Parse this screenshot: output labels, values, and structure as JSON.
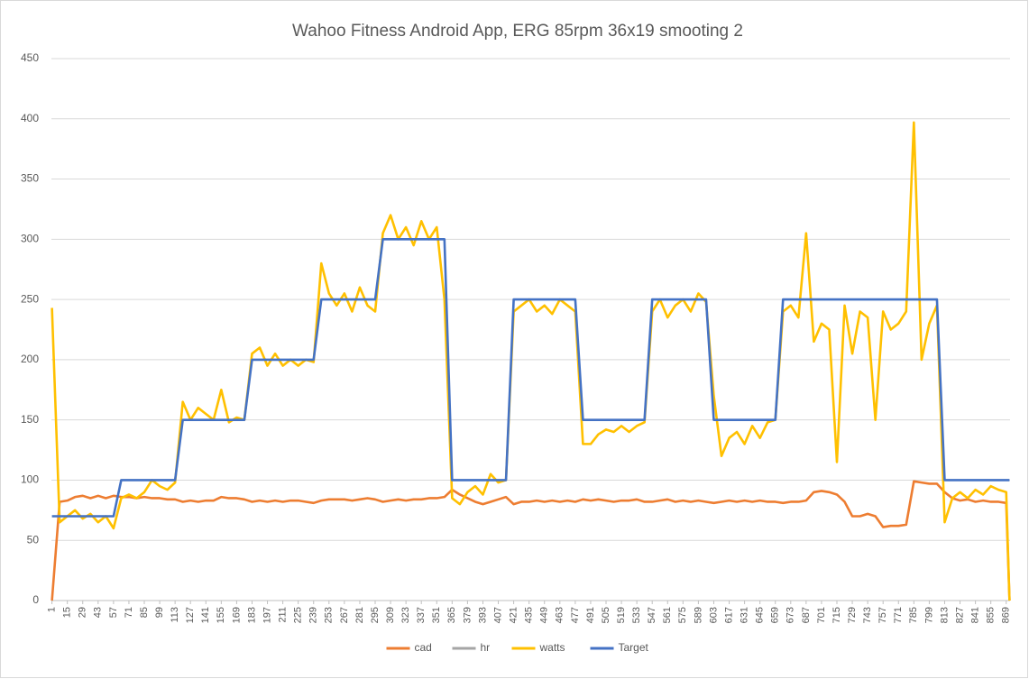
{
  "chart_data": {
    "type": "line",
    "title": "Wahoo Fitness Android App, ERG 85rpm 36x19  smooting 2",
    "x": [
      1,
      8,
      15,
      22,
      29,
      36,
      43,
      50,
      57,
      64,
      71,
      78,
      85,
      92,
      99,
      106,
      113,
      120,
      127,
      134,
      141,
      148,
      155,
      162,
      169,
      176,
      183,
      190,
      197,
      204,
      211,
      218,
      225,
      232,
      239,
      246,
      253,
      260,
      267,
      274,
      281,
      288,
      295,
      302,
      309,
      316,
      323,
      330,
      337,
      344,
      351,
      358,
      365,
      372,
      379,
      386,
      393,
      400,
      407,
      414,
      421,
      428,
      435,
      442,
      449,
      456,
      463,
      470,
      477,
      484,
      491,
      498,
      505,
      512,
      519,
      526,
      533,
      540,
      547,
      554,
      561,
      568,
      575,
      582,
      589,
      596,
      603,
      610,
      617,
      624,
      631,
      638,
      645,
      652,
      659,
      666,
      673,
      680,
      687,
      694,
      701,
      708,
      715,
      722,
      729,
      736,
      743,
      750,
      757,
      764,
      771,
      778,
      785,
      792,
      799,
      806,
      813,
      820,
      827,
      834,
      841,
      848,
      855,
      862,
      869,
      872
    ],
    "xlim": [
      0.5,
      872.5
    ],
    "xticks": [
      1,
      15,
      29,
      43,
      57,
      71,
      85,
      99,
      113,
      127,
      141,
      155,
      169,
      183,
      197,
      211,
      225,
      239,
      253,
      267,
      281,
      295,
      309,
      323,
      337,
      351,
      365,
      379,
      393,
      407,
      421,
      435,
      449,
      463,
      477,
      491,
      505,
      519,
      533,
      547,
      561,
      575,
      589,
      603,
      617,
      631,
      645,
      659,
      673,
      687,
      701,
      715,
      729,
      743,
      757,
      771,
      785,
      799,
      813,
      827,
      841,
      855,
      869
    ],
    "ylim": [
      0,
      450
    ],
    "yticks": [
      0,
      50,
      100,
      150,
      200,
      250,
      300,
      350,
      400,
      450
    ],
    "grid": true,
    "legend": "bottom",
    "series": [
      {
        "name": "cad",
        "color": "#ed7d31",
        "values": [
          0,
          82,
          83,
          86,
          87,
          85,
          87,
          85,
          87,
          86,
          86,
          85,
          86,
          85,
          85,
          84,
          84,
          82,
          83,
          82,
          83,
          83,
          86,
          85,
          85,
          84,
          82,
          83,
          82,
          83,
          82,
          83,
          83,
          82,
          81,
          83,
          84,
          84,
          84,
          83,
          84,
          85,
          84,
          82,
          83,
          84,
          83,
          84,
          84,
          85,
          85,
          86,
          92,
          88,
          85,
          82,
          80,
          82,
          84,
          86,
          80,
          82,
          82,
          83,
          82,
          83,
          82,
          83,
          82,
          84,
          83,
          84,
          83,
          82,
          83,
          83,
          84,
          82,
          82,
          83,
          84,
          82,
          83,
          82,
          83,
          82,
          81,
          82,
          83,
          82,
          83,
          82,
          83,
          82,
          82,
          81,
          82,
          82,
          83,
          90,
          91,
          90,
          88,
          82,
          70,
          70,
          72,
          70,
          61,
          62,
          62,
          63,
          99,
          98,
          97,
          97,
          90,
          85,
          83,
          84,
          82,
          83,
          82,
          82,
          81,
          0
        ]
      },
      {
        "name": "hr",
        "color": "#a5a5a5",
        "values": [
          null,
          null,
          null,
          null,
          null,
          null,
          null,
          null,
          null,
          null,
          null,
          null,
          null,
          null,
          null,
          null,
          null,
          null,
          null,
          null,
          null,
          null,
          null,
          null,
          null,
          null,
          null,
          null,
          null,
          null,
          null,
          null,
          null,
          null,
          null,
          null,
          null,
          null,
          null,
          null,
          null,
          null,
          null,
          null,
          null,
          null,
          null,
          null,
          null,
          null,
          null,
          null,
          null,
          null,
          null,
          null,
          null,
          null,
          null,
          null,
          null,
          null,
          null,
          null,
          null,
          null,
          null,
          null,
          null,
          null,
          null,
          null,
          null,
          null,
          null,
          null,
          null,
          null,
          null,
          null,
          null,
          null,
          null,
          null,
          null,
          null,
          null,
          null,
          null,
          null,
          null,
          null,
          null,
          null,
          null,
          null,
          null,
          null,
          null,
          null,
          null,
          null,
          null,
          null,
          null,
          null,
          null,
          null,
          null,
          null,
          null,
          null,
          null,
          null,
          null,
          null,
          null,
          null,
          null,
          null,
          null,
          null,
          null,
          null,
          null,
          null
        ]
      },
      {
        "name": "watts",
        "color": "#ffc000",
        "values": [
          243,
          65,
          70,
          75,
          68,
          72,
          65,
          70,
          60,
          85,
          88,
          85,
          90,
          100,
          95,
          92,
          98,
          165,
          150,
          160,
          155,
          150,
          175,
          148,
          152,
          150,
          205,
          210,
          195,
          205,
          195,
          200,
          195,
          200,
          198,
          280,
          255,
          245,
          255,
          240,
          260,
          245,
          240,
          305,
          320,
          300,
          310,
          295,
          315,
          300,
          310,
          250,
          85,
          80,
          90,
          95,
          88,
          105,
          98,
          100,
          240,
          245,
          250,
          240,
          245,
          238,
          250,
          245,
          240,
          130,
          130,
          138,
          142,
          140,
          145,
          140,
          145,
          148,
          240,
          250,
          235,
          245,
          250,
          240,
          255,
          248,
          170,
          120,
          135,
          140,
          130,
          145,
          135,
          148,
          150,
          240,
          245,
          235,
          305,
          215,
          230,
          225,
          115,
          245,
          205,
          240,
          235,
          150,
          240,
          225,
          230,
          240,
          397,
          200,
          230,
          245,
          65,
          85,
          90,
          85,
          92,
          88,
          95,
          92,
          90,
          0
        ]
      },
      {
        "name": "Target",
        "color": "#4472c4",
        "values": [
          70,
          70,
          70,
          70,
          70,
          70,
          70,
          70,
          70,
          100,
          100,
          100,
          100,
          100,
          100,
          100,
          100,
          150,
          150,
          150,
          150,
          150,
          150,
          150,
          150,
          150,
          200,
          200,
          200,
          200,
          200,
          200,
          200,
          200,
          200,
          250,
          250,
          250,
          250,
          250,
          250,
          250,
          250,
          300,
          300,
          300,
          300,
          300,
          300,
          300,
          300,
          300,
          100,
          100,
          100,
          100,
          100,
          100,
          100,
          100,
          250,
          250,
          250,
          250,
          250,
          250,
          250,
          250,
          250,
          150,
          150,
          150,
          150,
          150,
          150,
          150,
          150,
          150,
          250,
          250,
          250,
          250,
          250,
          250,
          250,
          250,
          150,
          150,
          150,
          150,
          150,
          150,
          150,
          150,
          150,
          250,
          250,
          250,
          250,
          250,
          250,
          250,
          250,
          250,
          250,
          250,
          250,
          250,
          250,
          250,
          250,
          250,
          250,
          250,
          250,
          250,
          100,
          100,
          100,
          100,
          100,
          100,
          100,
          100,
          100,
          100
        ]
      }
    ]
  }
}
